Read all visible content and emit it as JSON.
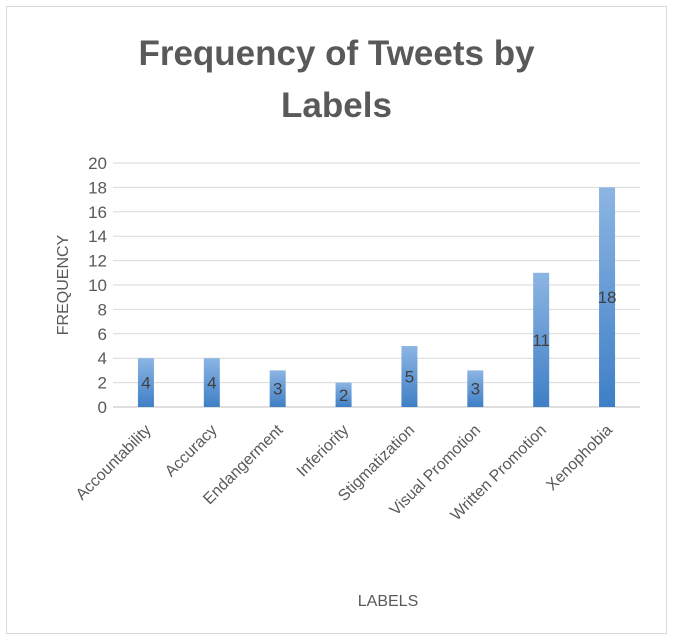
{
  "chart_data": {
    "type": "bar",
    "title_lines": [
      "Frequency of Tweets by",
      "Labels"
    ],
    "xlabel": "LABELS",
    "ylabel": "FREQUENCY",
    "ylim": [
      0,
      20
    ],
    "yticks": [
      0,
      2,
      4,
      6,
      8,
      10,
      12,
      14,
      16,
      18,
      20
    ],
    "grid": true,
    "categories": [
      "Accountability",
      "Accuracy",
      "Endangerment",
      "Inferiority",
      "Stigmatization",
      "Visual Promotion",
      "Written Promotion",
      "Xenophobia"
    ],
    "values": [
      4,
      4,
      3,
      2,
      5,
      3,
      11,
      18
    ],
    "bar_color_top": "#8cb5e3",
    "bar_color_bottom": "#3f7fc6"
  }
}
